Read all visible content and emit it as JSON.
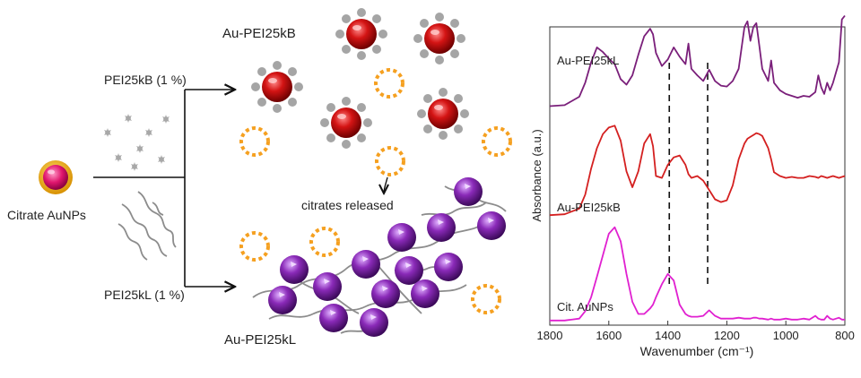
{
  "scheme": {
    "left_label": "Citrate AuNPs",
    "branch_top_label": "PEI25kB (1 %)",
    "branch_bottom_label": "PEI25kL (1 %)",
    "product_top_label": "Au-PEI25kB",
    "product_bottom_label": "Au-PEI25kL",
    "released_label": "citrates released"
  },
  "colors": {
    "gold_shell": "#f0b400",
    "pink_core": "#e0166e",
    "red_core": "#cc1010",
    "purple_sphere": "#8a2ab8",
    "citrate_ring": "#f5a020",
    "pei_gray": "#909090",
    "trace_kl": "#7a1f7a",
    "trace_kb": "#d42020",
    "trace_cit": "#e020d0"
  },
  "chart_data": {
    "type": "line",
    "title": "",
    "xlabel": "Wavenumber (cm⁻¹)",
    "ylabel": "Absorbance (a.u.)",
    "xlim": [
      1800,
      800
    ],
    "ylim": [
      0,
      3.2
    ],
    "x_ticks": [
      "1800",
      "1600",
      "1400",
      "1200",
      "1000",
      "800"
    ],
    "x_tick_values": [
      1800,
      1600,
      1400,
      1200,
      1000,
      800
    ],
    "reference_lines": [
      1395,
      1265
    ],
    "x": [
      1800,
      1750,
      1700,
      1680,
      1660,
      1640,
      1620,
      1600,
      1580,
      1560,
      1540,
      1520,
      1500,
      1480,
      1460,
      1450,
      1440,
      1420,
      1400,
      1380,
      1360,
      1340,
      1330,
      1320,
      1300,
      1280,
      1260,
      1240,
      1220,
      1200,
      1180,
      1160,
      1140,
      1130,
      1120,
      1110,
      1100,
      1090,
      1080,
      1060,
      1050,
      1040,
      1020,
      1000,
      980,
      960,
      940,
      920,
      900,
      890,
      880,
      870,
      860,
      850,
      840,
      820,
      810,
      800
    ],
    "series": [
      {
        "name": "Au-PEI25kL",
        "color": "#7a1f7a",
        "values": [
          2.35,
          2.36,
          2.45,
          2.6,
          2.82,
          2.98,
          2.93,
          2.86,
          2.8,
          2.64,
          2.58,
          2.68,
          2.9,
          3.1,
          3.18,
          3.12,
          2.92,
          2.78,
          2.85,
          2.98,
          2.88,
          2.8,
          3.02,
          2.75,
          2.68,
          2.62,
          2.74,
          2.62,
          2.57,
          2.56,
          2.62,
          2.75,
          3.2,
          3.26,
          3.05,
          3.2,
          3.24,
          3.0,
          2.75,
          2.62,
          2.84,
          2.6,
          2.52,
          2.48,
          2.46,
          2.44,
          2.46,
          2.45,
          2.5,
          2.68,
          2.55,
          2.48,
          2.6,
          2.52,
          2.6,
          2.82,
          3.28,
          3.32
        ]
      },
      {
        "name": "Au-PEI25kB",
        "color": "#d42020",
        "values": [
          1.18,
          1.19,
          1.25,
          1.4,
          1.68,
          1.9,
          2.05,
          2.12,
          2.14,
          1.98,
          1.65,
          1.48,
          1.65,
          1.95,
          2.05,
          1.92,
          1.6,
          1.58,
          1.72,
          1.8,
          1.82,
          1.72,
          1.62,
          1.58,
          1.6,
          1.55,
          1.45,
          1.35,
          1.32,
          1.34,
          1.5,
          1.78,
          1.95,
          2.0,
          2.02,
          2.04,
          2.06,
          2.05,
          2.03,
          1.9,
          1.78,
          1.64,
          1.6,
          1.58,
          1.59,
          1.58,
          1.58,
          1.6,
          1.59,
          1.58,
          1.6,
          1.59,
          1.58,
          1.59,
          1.6,
          1.58,
          1.59,
          1.6
        ]
      },
      {
        "name": "Cit. AuNPs",
        "color": "#e020d0",
        "values": [
          0.05,
          0.05,
          0.07,
          0.15,
          0.3,
          0.52,
          0.75,
          0.98,
          1.05,
          0.9,
          0.55,
          0.25,
          0.12,
          0.12,
          0.18,
          0.22,
          0.3,
          0.44,
          0.55,
          0.48,
          0.22,
          0.12,
          0.1,
          0.09,
          0.09,
          0.1,
          0.16,
          0.1,
          0.07,
          0.07,
          0.07,
          0.08,
          0.07,
          0.07,
          0.07,
          0.08,
          0.08,
          0.07,
          0.07,
          0.06,
          0.07,
          0.06,
          0.06,
          0.07,
          0.06,
          0.06,
          0.07,
          0.06,
          0.1,
          0.07,
          0.06,
          0.06,
          0.1,
          0.07,
          0.06,
          0.08,
          0.06,
          0.06
        ]
      }
    ]
  }
}
